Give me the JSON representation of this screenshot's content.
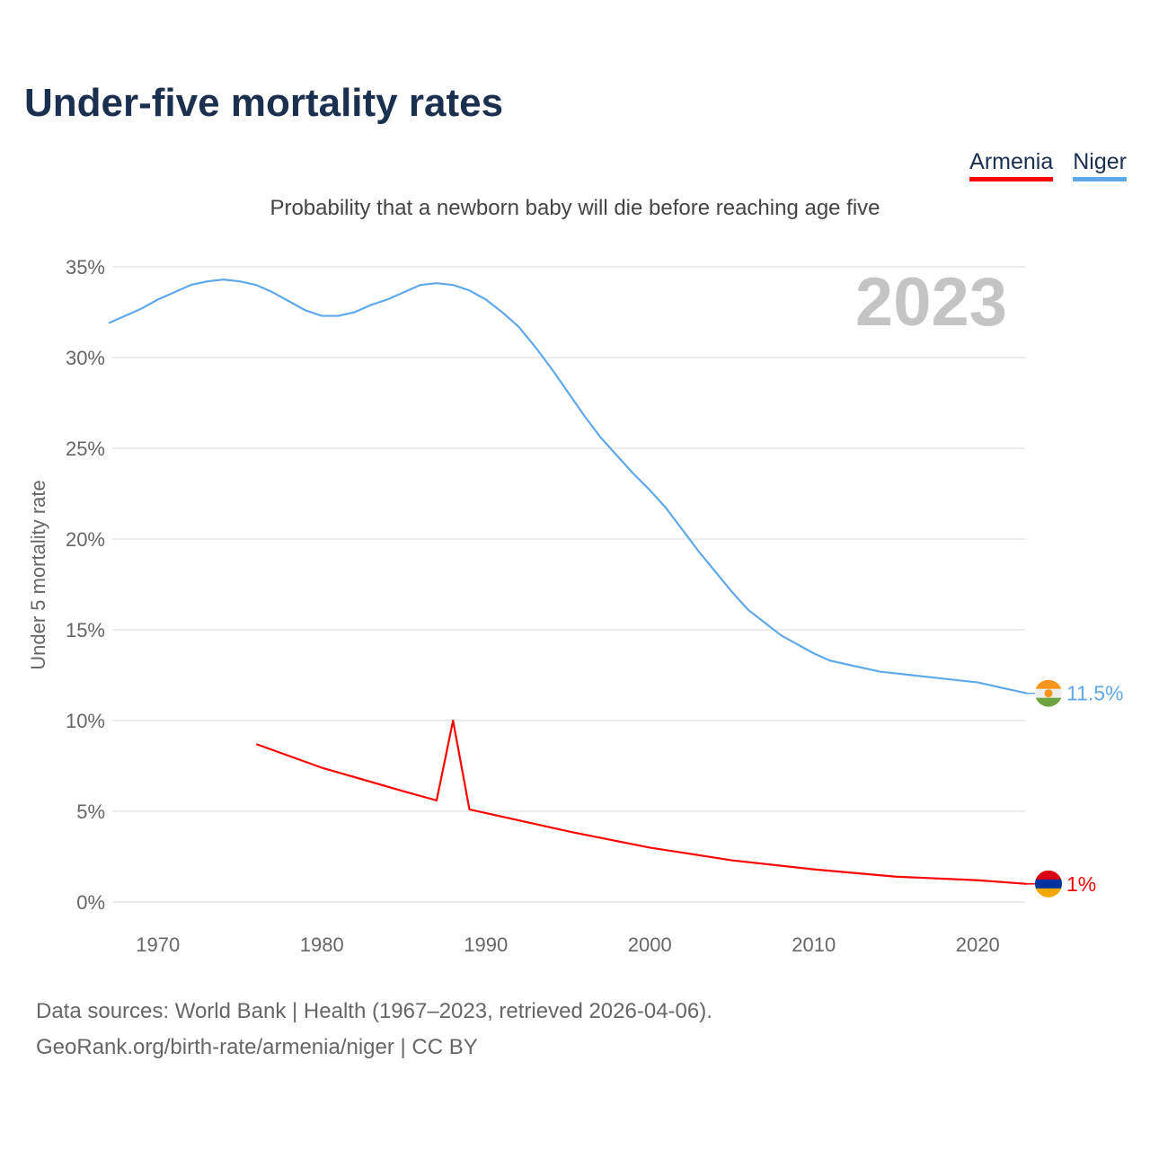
{
  "chart_data": {
    "type": "line",
    "title": "Under-five mortality rates",
    "subtitle": "Probability that a newborn baby will die before reaching age five",
    "ylabel": "Under 5 mortality rate",
    "xlabel": "",
    "xlim": [
      1967,
      2023
    ],
    "ylim": [
      0,
      35
    ],
    "grid": true,
    "legend_position": "top-right",
    "year_label": "2023",
    "x_ticks": [
      "1970",
      "1980",
      "1990",
      "2000",
      "2010",
      "2020"
    ],
    "y_ticks": [
      "0%",
      "5%",
      "10%",
      "15%",
      "20%",
      "25%",
      "30%",
      "35%"
    ],
    "series": [
      {
        "name": "Armenia",
        "color": "#ff0000",
        "end_label": "1%",
        "x": [
          1976,
          1980,
          1985,
          1987,
          1988,
          1989,
          1995,
          2000,
          2005,
          2010,
          2015,
          2020,
          2023
        ],
        "values": [
          8.7,
          7.4,
          6.1,
          5.6,
          10.0,
          5.1,
          3.9,
          3.0,
          2.3,
          1.8,
          1.4,
          1.2,
          1.0
        ]
      },
      {
        "name": "Niger",
        "color": "#5fa8ea",
        "end_label": "11.5%",
        "x": [
          1967,
          1969,
          1970,
          1972,
          1973,
          1974,
          1975,
          1976,
          1977,
          1978,
          1979,
          1980,
          1981,
          1982,
          1983,
          1984,
          1985,
          1986,
          1987,
          1988,
          1989,
          1990,
          1991,
          1992,
          1993,
          1994,
          1995,
          1996,
          1997,
          1998,
          1999,
          2000,
          2001,
          2002,
          2003,
          2004,
          2005,
          2006,
          2007,
          2008,
          2009,
          2010,
          2011,
          2012,
          2014,
          2016,
          2018,
          2020,
          2023
        ],
        "values": [
          31.9,
          32.7,
          33.2,
          34.0,
          34.2,
          34.3,
          34.2,
          34.0,
          33.6,
          33.1,
          32.6,
          32.3,
          32.3,
          32.5,
          32.9,
          33.2,
          33.6,
          34.0,
          34.1,
          34.0,
          33.7,
          33.2,
          32.5,
          31.7,
          30.6,
          29.4,
          28.1,
          26.8,
          25.6,
          24.6,
          23.6,
          22.7,
          21.7,
          20.5,
          19.3,
          18.2,
          17.1,
          16.1,
          15.4,
          14.7,
          14.2,
          13.7,
          13.3,
          13.1,
          12.7,
          12.5,
          12.3,
          12.1,
          11.5
        ]
      }
    ]
  },
  "footer": {
    "line1": "Data sources: World Bank | Health (1967–2023, retrieved 2026-04-06).",
    "line2": "GeoRank.org/birth-rate/armenia/niger | CC BY"
  }
}
